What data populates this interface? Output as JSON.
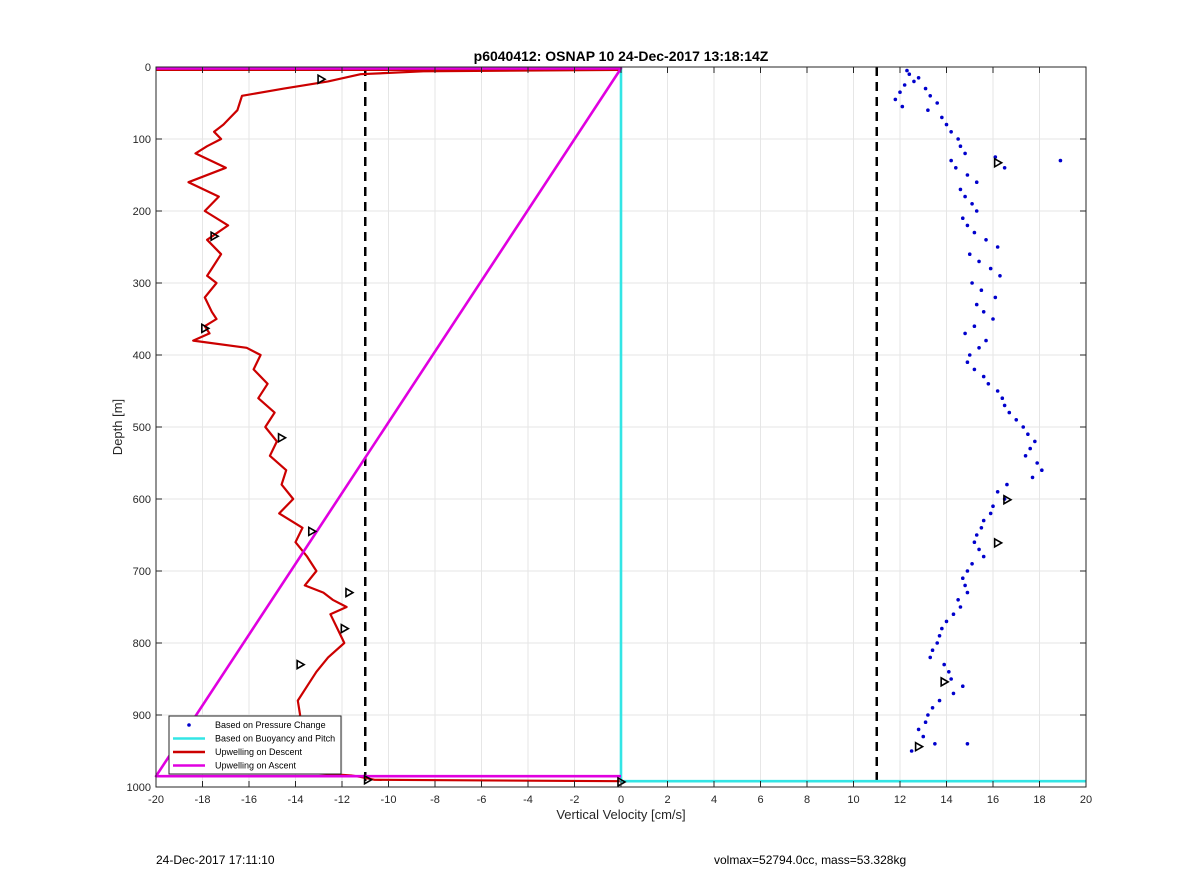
{
  "chart_data": {
    "type": "line",
    "title": "p6040412: OSNAP 10 24-Dec-2017 13:18:14Z",
    "xlabel": "Vertical Velocity [cm/s]",
    "ylabel": "Depth [m]",
    "xlim": [
      -20,
      20
    ],
    "ylim": [
      0,
      1000
    ],
    "y_reversed": true,
    "xticks": [
      -20,
      -18,
      -16,
      -14,
      -12,
      -10,
      -8,
      -6,
      -4,
      -2,
      0,
      2,
      4,
      6,
      8,
      10,
      12,
      14,
      16,
      18,
      20
    ],
    "yticks": [
      0,
      100,
      200,
      300,
      400,
      500,
      600,
      700,
      800,
      900,
      1000
    ],
    "grid": true,
    "legend_position": "bottom-left",
    "reference_lines": [
      {
        "x": -11,
        "style": "dashed",
        "color": "#000000"
      },
      {
        "x": 11,
        "style": "dashed",
        "color": "#000000"
      }
    ],
    "series": [
      {
        "name": "Based on Pressure Change",
        "kind": "scatter",
        "color": "#0000cc",
        "x": [
          12.3,
          12.4,
          12.8,
          12.6,
          12.2,
          12.0,
          11.8,
          12.1,
          13.1,
          13.3,
          13.6,
          13.2,
          13.8,
          14.0,
          14.2,
          14.5,
          14.6,
          14.8,
          14.2,
          14.4,
          14.9,
          15.3,
          16.1,
          16.5,
          18.9,
          14.6,
          14.8,
          15.1,
          15.3,
          14.7,
          14.9,
          15.2,
          15.7,
          16.2,
          15.0,
          15.4,
          15.9,
          16.3,
          15.1,
          15.5,
          16.1,
          15.3,
          15.6,
          16.0,
          15.2,
          14.8,
          15.7,
          15.4,
          15.0,
          14.9,
          15.2,
          15.6,
          15.8,
          16.2,
          16.4,
          16.5,
          16.7,
          17.0,
          17.3,
          17.5,
          17.8,
          17.6,
          17.4,
          17.9,
          18.1,
          17.7,
          16.6,
          16.2,
          16.5,
          16.0,
          15.9,
          15.6,
          15.5,
          15.3,
          15.2,
          15.4,
          15.6,
          15.1,
          14.9,
          14.7,
          14.8,
          14.9,
          14.5,
          14.6,
          14.3,
          14.0,
          13.8,
          13.7,
          13.6,
          13.4,
          13.3,
          13.9,
          14.1,
          14.2,
          14.7,
          14.3,
          13.7,
          13.4,
          13.2,
          13.1,
          12.8,
          13.0,
          13.5,
          12.5,
          14.9
        ],
        "y": [
          5,
          10,
          15,
          20,
          25,
          35,
          45,
          55,
          30,
          40,
          50,
          60,
          70,
          80,
          90,
          100,
          110,
          120,
          130,
          140,
          150,
          160,
          125,
          140,
          130,
          170,
          180,
          190,
          200,
          210,
          220,
          230,
          240,
          250,
          260,
          270,
          280,
          290,
          300,
          310,
          320,
          330,
          340,
          350,
          360,
          370,
          380,
          390,
          400,
          410,
          420,
          430,
          440,
          450,
          460,
          470,
          480,
          490,
          500,
          510,
          520,
          530,
          540,
          550,
          560,
          570,
          580,
          590,
          600,
          610,
          620,
          630,
          640,
          650,
          660,
          670,
          680,
          690,
          700,
          710,
          720,
          730,
          740,
          750,
          760,
          770,
          780,
          790,
          800,
          810,
          820,
          830,
          840,
          850,
          860,
          870,
          880,
          890,
          900,
          910,
          920,
          930,
          940,
          950,
          940
        ]
      },
      {
        "name": "Based on Buoyancy and Pitch",
        "kind": "line",
        "color": "#33e5e5",
        "x": [
          0,
          0,
          0,
          20
        ],
        "y": [
          0,
          990,
          992,
          992
        ]
      },
      {
        "name": "Upwelling on Descent",
        "kind": "line",
        "color": "#cc0000",
        "x": [
          -20,
          0,
          -8.5,
          -11.2,
          -12.6,
          -14.5,
          -16.3,
          -16.4,
          -16.5,
          -16.8,
          -17.1,
          -17.5,
          -17.2,
          -17.8,
          -18.3,
          -17.0,
          -18.6,
          -17.3,
          -17.9,
          -16.9,
          -17.8,
          -17.2,
          -17.6,
          -17.8,
          -17.4,
          -17.9,
          -17.6,
          -17.4,
          -17.9,
          -17.7,
          -18.4,
          -16.1,
          -15.5,
          -15.8,
          -15.2,
          -15.6,
          -14.9,
          -15.3,
          -14.8,
          -15.1,
          -14.4,
          -14.6,
          -14.1,
          -14.7,
          -13.7,
          -14.0,
          -13.5,
          -13.1,
          -13.6,
          -12.8,
          -12.4,
          -11.8,
          -12.5,
          -12.2,
          -11.9,
          -12.6,
          -13.1,
          -13.5,
          -13.9,
          -13.8,
          -14.0,
          -14.1,
          -14.0,
          -14.6,
          -14.8,
          -14.0,
          -13.5,
          -11.6,
          -11.2,
          -10.6,
          0
        ],
        "y": [
          4,
          4,
          6,
          10,
          20,
          30,
          40,
          50,
          60,
          70,
          80,
          90,
          100,
          110,
          120,
          140,
          160,
          180,
          200,
          220,
          240,
          260,
          280,
          290,
          300,
          320,
          340,
          350,
          360,
          370,
          380,
          390,
          400,
          420,
          440,
          460,
          480,
          500,
          520,
          540,
          560,
          580,
          600,
          620,
          640,
          660,
          680,
          700,
          720,
          730,
          740,
          750,
          760,
          780,
          800,
          820,
          840,
          860,
          880,
          900,
          920,
          940,
          950,
          960,
          970,
          975,
          980,
          984,
          986,
          990,
          992
        ]
      },
      {
        "name": "Upwelling on Ascent",
        "kind": "line",
        "color": "#e000e0",
        "x": [
          -20,
          0,
          -20,
          0
        ],
        "y": [
          2,
          2,
          985,
          985
        ]
      }
    ],
    "markers": [
      {
        "x": -12.9,
        "y": 17
      },
      {
        "x": -17.5,
        "y": 235
      },
      {
        "x": -17.9,
        "y": 363
      },
      {
        "x": -14.6,
        "y": 515
      },
      {
        "x": -13.3,
        "y": 645
      },
      {
        "x": -11.7,
        "y": 730
      },
      {
        "x": -11.9,
        "y": 780
      },
      {
        "x": -13.8,
        "y": 830
      },
      {
        "x": -14.4,
        "y": 923
      },
      {
        "x": -10.9,
        "y": 990
      },
      {
        "x": 0,
        "y": 993
      },
      {
        "x": 16.2,
        "y": 133
      },
      {
        "x": 16.6,
        "y": 601
      },
      {
        "x": 16.2,
        "y": 661
      },
      {
        "x": 13.9,
        "y": 854
      },
      {
        "x": 12.8,
        "y": 944
      }
    ],
    "marker_color": "#000000",
    "legend": [
      {
        "label": "Based on Pressure Change",
        "symbol": "dot",
        "color": "#0000cc"
      },
      {
        "label": "Based on Buoyancy and Pitch",
        "symbol": "line",
        "color": "#33e5e5"
      },
      {
        "label": "Upwelling on Descent",
        "symbol": "line",
        "color": "#cc0000"
      },
      {
        "label": "Upwelling on Ascent",
        "symbol": "line",
        "color": "#e000e0"
      }
    ]
  },
  "footer": {
    "left": "24-Dec-2017 17:11:10",
    "right": "volmax=52794.0cc, mass=53.328kg"
  }
}
